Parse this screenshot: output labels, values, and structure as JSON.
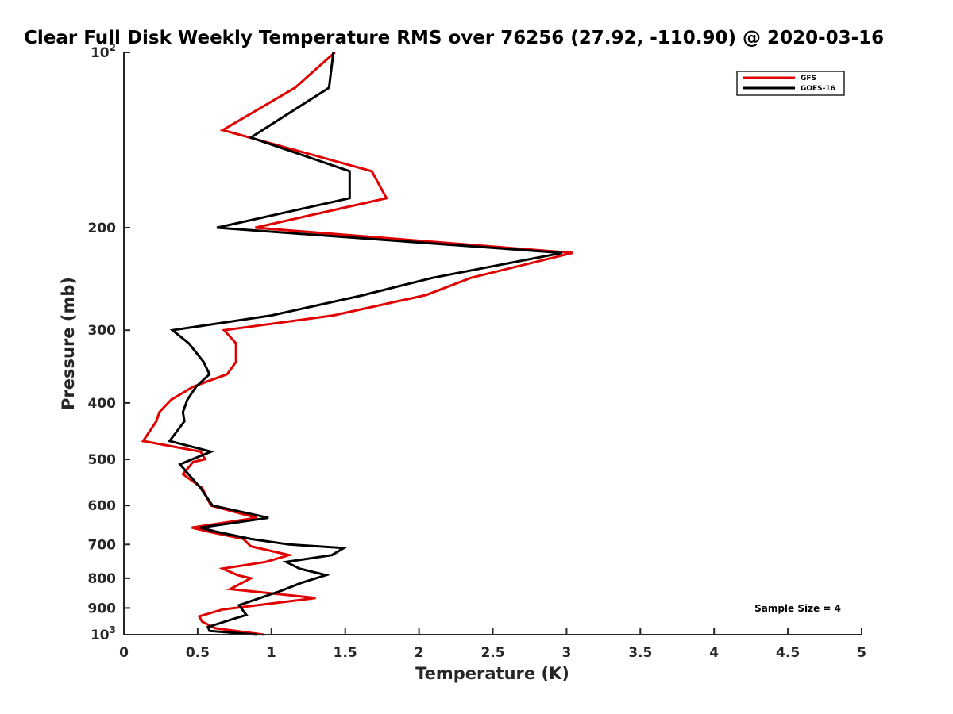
{
  "chart_data": {
    "type": "line",
    "title": "Clear Full Disk Weekly Temperature RMS over 76256 (27.92, -110.90) @ 2020-03-16",
    "xlabel": "Temperature (K)",
    "ylabel": "Pressure (mb)",
    "xlim": [
      0,
      5
    ],
    "ylim": [
      100,
      1000
    ],
    "y_scale": "log",
    "y_reversed": true,
    "grid": false,
    "legend_placement": "top-right",
    "x_ticks": [
      {
        "value": 0,
        "label": "0"
      },
      {
        "value": 0.5,
        "label": "0.5"
      },
      {
        "value": 1,
        "label": "1"
      },
      {
        "value": 1.5,
        "label": "1.5"
      },
      {
        "value": 2,
        "label": "2"
      },
      {
        "value": 2.5,
        "label": "2.5"
      },
      {
        "value": 3,
        "label": "3"
      },
      {
        "value": 3.5,
        "label": "3.5"
      },
      {
        "value": 4,
        "label": "4"
      },
      {
        "value": 4.5,
        "label": "4.5"
      },
      {
        "value": 5,
        "label": "5"
      }
    ],
    "y_ticks": [
      {
        "value": 100,
        "label": "10",
        "sup": "2"
      },
      {
        "value": 200,
        "label": "200"
      },
      {
        "value": 300,
        "label": "300"
      },
      {
        "value": 400,
        "label": "400"
      },
      {
        "value": 500,
        "label": "500"
      },
      {
        "value": 600,
        "label": "600"
      },
      {
        "value": 700,
        "label": "700"
      },
      {
        "value": 800,
        "label": "800"
      },
      {
        "value": 900,
        "label": "900"
      },
      {
        "value": 1000,
        "label": "10",
        "sup": "3"
      }
    ],
    "annotation": "Sample Size = 4",
    "series": [
      {
        "name": "GFS",
        "color": "#e00000",
        "points": [
          [
            1.43,
            100
          ],
          [
            1.16,
            115
          ],
          [
            0.67,
            136
          ],
          [
            1.68,
            160
          ],
          [
            1.78,
            178
          ],
          [
            0.89,
            200
          ],
          [
            3.04,
            221
          ],
          [
            2.35,
            244
          ],
          [
            2.05,
            261
          ],
          [
            1.42,
            283
          ],
          [
            0.68,
            300
          ],
          [
            0.76,
            316
          ],
          [
            0.76,
            340
          ],
          [
            0.7,
            357
          ],
          [
            0.47,
            375
          ],
          [
            0.32,
            395
          ],
          [
            0.24,
            415
          ],
          [
            0.22,
            430
          ],
          [
            0.13,
            465
          ],
          [
            0.52,
            485
          ],
          [
            0.55,
            500
          ],
          [
            0.47,
            505
          ],
          [
            0.4,
            530
          ],
          [
            0.53,
            560
          ],
          [
            0.59,
            600
          ],
          [
            0.9,
            630
          ],
          [
            0.46,
            655
          ],
          [
            0.57,
            665
          ],
          [
            0.81,
            685
          ],
          [
            0.86,
            705
          ],
          [
            1.12,
            730
          ],
          [
            0.96,
            750
          ],
          [
            0.67,
            770
          ],
          [
            0.77,
            790
          ],
          [
            0.86,
            800
          ],
          [
            0.72,
            835
          ],
          [
            1.3,
            865
          ],
          [
            0.67,
            905
          ],
          [
            0.51,
            930
          ],
          [
            0.53,
            950
          ],
          [
            0.62,
            975
          ],
          [
            0.95,
            1000
          ]
        ]
      },
      {
        "name": "GOES-16",
        "color": "#000000",
        "points": [
          [
            1.42,
            100
          ],
          [
            1.39,
            115
          ],
          [
            0.86,
            140
          ],
          [
            1.53,
            160
          ],
          [
            1.53,
            178
          ],
          [
            0.63,
            200
          ],
          [
            2.97,
            221
          ],
          [
            2.09,
            244
          ],
          [
            1.6,
            262
          ],
          [
            1.0,
            283
          ],
          [
            0.33,
            300
          ],
          [
            0.44,
            316
          ],
          [
            0.54,
            340
          ],
          [
            0.58,
            357
          ],
          [
            0.49,
            375
          ],
          [
            0.43,
            395
          ],
          [
            0.4,
            415
          ],
          [
            0.41,
            430
          ],
          [
            0.31,
            465
          ],
          [
            0.59,
            485
          ],
          [
            0.38,
            510
          ],
          [
            0.52,
            560
          ],
          [
            0.6,
            600
          ],
          [
            0.98,
            630
          ],
          [
            0.52,
            655
          ],
          [
            0.62,
            665
          ],
          [
            0.86,
            685
          ],
          [
            1.12,
            700
          ],
          [
            1.49,
            710
          ],
          [
            1.41,
            730
          ],
          [
            1.1,
            750
          ],
          [
            1.19,
            770
          ],
          [
            1.37,
            790
          ],
          [
            1.2,
            815
          ],
          [
            1.07,
            840
          ],
          [
            0.78,
            890
          ],
          [
            0.83,
            925
          ],
          [
            0.71,
            945
          ],
          [
            0.57,
            970
          ],
          [
            0.58,
            985
          ],
          [
            0.9,
            1000
          ]
        ]
      }
    ]
  }
}
